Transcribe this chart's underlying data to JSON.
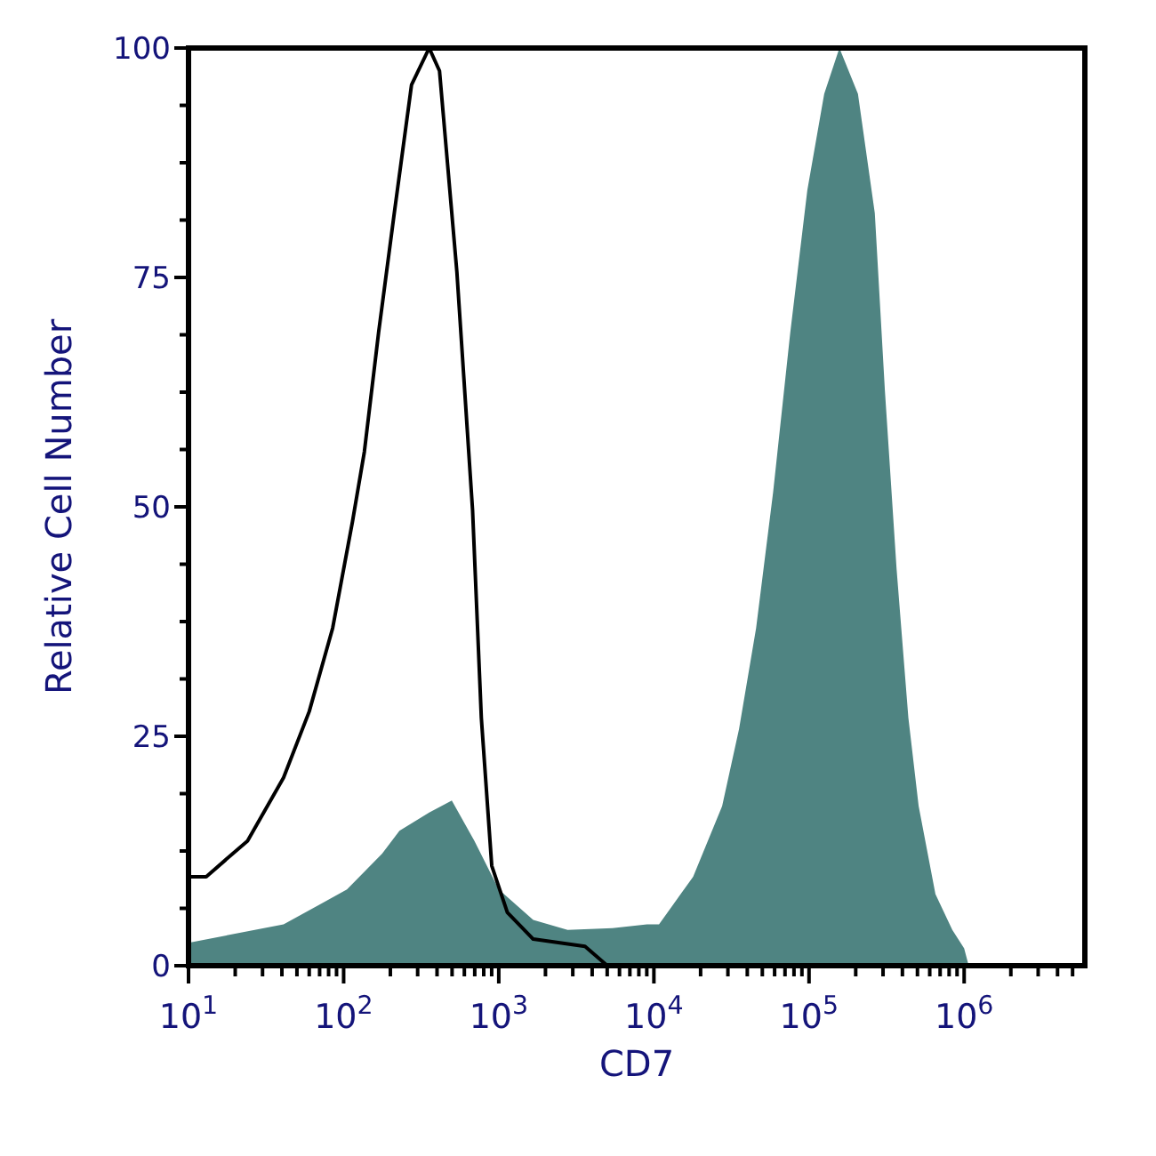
{
  "chart_data": {
    "type": "area",
    "xlabel": "CD7",
    "ylabel": "Relative Cell Number",
    "log": "x",
    "grid": false,
    "xlim": [
      10,
      6000000
    ],
    "ylim": [
      0,
      100
    ],
    "xticks": [
      {
        "value": 10,
        "label": "10$^{1}$"
      },
      {
        "value": 20,
        "label": null
      },
      {
        "value": 30,
        "label": null
      },
      {
        "value": 40,
        "label": null
      },
      {
        "value": 50,
        "label": null
      },
      {
        "value": 60,
        "label": null
      },
      {
        "value": 70,
        "label": null
      },
      {
        "value": 80,
        "label": null
      },
      {
        "value": 90,
        "label": null
      },
      {
        "value": 100,
        "label": "10$^{2}$"
      },
      {
        "value": 200,
        "label": null
      },
      {
        "value": 300,
        "label": null
      },
      {
        "value": 400,
        "label": null
      },
      {
        "value": 500,
        "label": null
      },
      {
        "value": 600,
        "label": null
      },
      {
        "value": 700,
        "label": null
      },
      {
        "value": 800,
        "label": null
      },
      {
        "value": 900,
        "label": null
      },
      {
        "value": 1000,
        "label": "10$^{3}$"
      },
      {
        "value": 2000,
        "label": null
      },
      {
        "value": 3000,
        "label": null
      },
      {
        "value": 4000,
        "label": null
      },
      {
        "value": 5000,
        "label": null
      },
      {
        "value": 6000,
        "label": null
      },
      {
        "value": 7000,
        "label": null
      },
      {
        "value": 8000,
        "label": null
      },
      {
        "value": 9000,
        "label": null
      },
      {
        "value": 10000,
        "label": "10$^{4}$"
      },
      {
        "value": 20000,
        "label": null
      },
      {
        "value": 30000,
        "label": null
      },
      {
        "value": 40000,
        "label": null
      },
      {
        "value": 50000,
        "label": null
      },
      {
        "value": 60000,
        "label": null
      },
      {
        "value": 70000,
        "label": null
      },
      {
        "value": 80000,
        "label": null
      },
      {
        "value": 90000,
        "label": null
      },
      {
        "value": 100000,
        "label": "10$^{5}$"
      },
      {
        "value": 200000,
        "label": null
      },
      {
        "value": 300000,
        "label": null
      },
      {
        "value": 400000,
        "label": null
      },
      {
        "value": 500000,
        "label": null
      },
      {
        "value": 600000,
        "label": null
      },
      {
        "value": 700000,
        "label": null
      },
      {
        "value": 800000,
        "label": null
      },
      {
        "value": 900000,
        "label": null
      },
      {
        "value": 1000000,
        "label": "10$^{6}$"
      },
      {
        "value": 2000000,
        "label": null
      },
      {
        "value": 3000000,
        "label": null
      },
      {
        "value": 4000000,
        "label": null
      },
      {
        "value": 5000000,
        "label": null
      }
    ],
    "yticks": [
      0,
      {
        "value": 6.25,
        "label": null
      },
      {
        "value": 12.5,
        "label": null
      },
      {
        "value": 18.75,
        "label": null
      },
      25,
      {
        "value": 31.25,
        "label": null
      },
      {
        "value": 37.5,
        "label": null
      },
      {
        "value": 43.75,
        "label": null
      },
      50,
      {
        "value": 56.25,
        "label": null
      },
      {
        "value": 62.5,
        "label": null
      },
      {
        "value": 68.75,
        "label": null
      },
      75,
      {
        "value": 81.25,
        "label": null
      },
      {
        "value": 87.5,
        "label": null
      },
      {
        "value": 93.75,
        "label": null
      },
      100
    ],
    "series": [
      {
        "color": "#4f8482",
        "x": [
          10,
          41,
          105,
          177,
          229,
          356,
          498,
          697,
          1000,
          1667,
          2780,
          5410,
          9030,
          10790,
          17900,
          27540,
          35400,
          45600,
          58700,
          75700,
          97500,
          125300,
          157000,
          206700,
          265500,
          308600,
          367000,
          437000,
          509000,
          653000,
          839000,
          1000000,
          1070000
        ],
        "values": [
          2.5,
          4.5,
          8.3,
          12.2,
          14.7,
          16.7,
          18,
          13.6,
          8.3,
          5,
          3.9,
          4.1,
          4.5,
          4.5,
          9.7,
          17.4,
          25.8,
          36.8,
          51.6,
          69,
          84.5,
          95,
          100,
          95,
          82,
          62.6,
          43.2,
          27,
          17.4,
          7.8,
          3.9,
          1.9,
          0
        ]
      },
      {
        "type": "line",
        "color": "#000000",
        "x": [
          10,
          13,
          24,
          41,
          60,
          85,
          114,
          136,
          168,
          212,
          274,
          356,
          415,
          537,
          678,
          772,
          901,
          1136,
          1667,
          3597,
          5012
        ],
        "values": [
          9.7,
          9.7,
          13.6,
          20.5,
          27.7,
          36.8,
          48.4,
          56,
          69,
          82,
          96,
          100,
          97.5,
          75.6,
          49.6,
          27,
          10.9,
          5.8,
          2.9,
          2.1,
          0
        ]
      }
    ]
  }
}
